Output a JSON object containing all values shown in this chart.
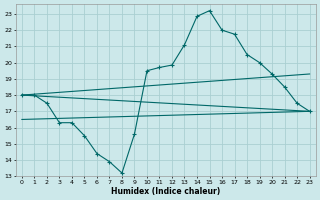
{
  "bg_color": "#cce8ea",
  "grid_color": "#aacfd2",
  "line_color": "#006868",
  "xlabel": "Humidex (Indice chaleur)",
  "xlim": [
    -0.5,
    23.5
  ],
  "ylim": [
    13,
    23.6
  ],
  "yticks": [
    13,
    14,
    15,
    16,
    17,
    18,
    19,
    20,
    21,
    22,
    23
  ],
  "xtick_labels": [
    "0",
    "1",
    "2",
    "3",
    "4",
    "5",
    "6",
    "7",
    "8",
    "9",
    "10",
    "11",
    "12",
    "13",
    "14",
    "15",
    "16",
    "17",
    "18",
    "19",
    "20",
    "21",
    "22",
    "23"
  ],
  "curve1_x": [
    0,
    1,
    2,
    3,
    4,
    5,
    6,
    7,
    8,
    9,
    10,
    11,
    12,
    13,
    14,
    15,
    16,
    17,
    18,
    19,
    20,
    21,
    22,
    23
  ],
  "curve1_y": [
    18.0,
    18.0,
    17.5,
    16.3,
    16.3,
    15.5,
    14.4,
    13.9,
    13.2,
    15.6,
    19.5,
    19.7,
    19.85,
    21.1,
    22.85,
    23.2,
    22.0,
    21.75,
    20.5,
    20.0,
    19.3,
    18.5,
    17.5,
    17.0
  ],
  "curve2_x": [
    0,
    23
  ],
  "curve2_y": [
    18.0,
    19.3
  ],
  "curve3_x": [
    0,
    23
  ],
  "curve3_y": [
    18.0,
    17.0
  ],
  "curve4_x": [
    0,
    23
  ],
  "curve4_y": [
    16.5,
    17.0
  ]
}
